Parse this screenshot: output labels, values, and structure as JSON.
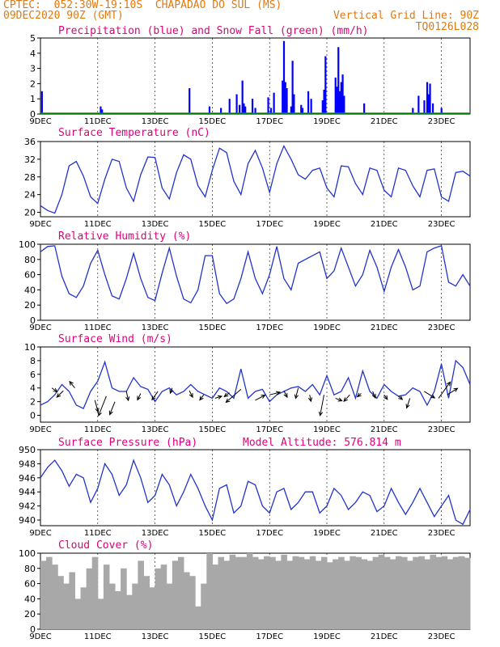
{
  "header": {
    "left_line1": "CPTEC:  052:30W-19:10S  CHAPADAO DO SUL (MS)",
    "left_line2": "09DEC2020 90Z (GMT)",
    "right_line2": "Vertical Grid Line: 90Z",
    "right_line3": "TQ0126L028"
  },
  "colors": {
    "header": "#e07a10",
    "panel_title": "#e0007a",
    "precip": "#0000ff",
    "snow": "#00a000",
    "line": "#2233cc",
    "arrow": "#000000",
    "cloud": "#a8a8a8",
    "grid": "#000000"
  },
  "x_axis": {
    "tick_labels": [
      "9DEC",
      "11DEC",
      "13DEC",
      "15DEC",
      "17DEC",
      "19DEC",
      "21DEC",
      "23DEC"
    ],
    "tick_days": [
      0,
      2,
      4,
      6,
      8,
      10,
      12,
      14
    ],
    "day_span": [
      0,
      15
    ],
    "unit": "days since 09DEC2020"
  },
  "chart_data": [
    {
      "type": "bar",
      "title": "Precipitation (blue) and Snow Fall (green) (mm/h)",
      "ylim": [
        0,
        5
      ],
      "yticks": [
        0,
        1,
        2,
        3,
        4,
        5
      ],
      "series": [
        {
          "name": "Precipitation",
          "x": [
            0.05,
            2.1,
            2.15,
            5.2,
            5.9,
            6.3,
            6.6,
            6.85,
            6.95,
            7.05,
            7.1,
            7.15,
            7.4,
            7.5,
            7.95,
            8.05,
            8.15,
            8.45,
            8.5,
            8.55,
            8.6,
            8.75,
            8.8,
            8.85,
            9.1,
            9.15,
            9.35,
            9.45,
            9.85,
            9.9,
            9.95,
            10.3,
            10.35,
            10.4,
            10.45,
            10.5,
            10.55,
            10.6,
            11.3,
            13.0,
            13.2,
            13.4,
            13.5,
            13.55,
            13.6,
            13.7,
            14.0
          ],
          "values": [
            1.5,
            0.5,
            0.3,
            1.7,
            0.5,
            0.4,
            1.0,
            1.3,
            0.6,
            2.2,
            0.7,
            0.5,
            1.0,
            0.4,
            1.1,
            0.4,
            1.4,
            2.2,
            4.8,
            2.1,
            1.7,
            0.5,
            3.5,
            1.3,
            0.6,
            0.4,
            1.5,
            1.0,
            0.9,
            1.6,
            3.8,
            2.4,
            1.8,
            4.4,
            1.5,
            2.1,
            2.6,
            1.2,
            0.7,
            0.4,
            1.2,
            0.9,
            2.1,
            1.3,
            2.0,
            0.7,
            0.4
          ]
        },
        {
          "name": "Snow Fall",
          "x": [
            0,
            15
          ],
          "values": [
            0,
            0
          ]
        }
      ]
    },
    {
      "type": "line",
      "title": "Surface Temperature (nC)",
      "ylim": [
        19,
        36
      ],
      "yticks": [
        20,
        24,
        28,
        32,
        36
      ],
      "x": [
        0,
        0.25,
        0.5,
        0.75,
        1.0,
        1.25,
        1.5,
        1.75,
        2.0,
        2.25,
        2.5,
        2.75,
        3.0,
        3.25,
        3.5,
        3.75,
        4.0,
        4.25,
        4.5,
        4.75,
        5.0,
        5.25,
        5.5,
        5.75,
        6.0,
        6.25,
        6.5,
        6.75,
        7.0,
        7.25,
        7.5,
        7.75,
        8.0,
        8.25,
        8.5,
        8.75,
        9.0,
        9.25,
        9.5,
        9.75,
        10.0,
        10.25,
        10.5,
        10.75,
        11.0,
        11.25,
        11.5,
        11.75,
        12.0,
        12.25,
        12.5,
        12.75,
        13.0,
        13.25,
        13.5,
        13.75,
        14.0,
        14.25,
        14.5,
        14.75,
        15.0
      ],
      "values": [
        21.5,
        20.4,
        19.8,
        24.0,
        30.5,
        31.5,
        28.2,
        23.5,
        22.0,
        27.5,
        32.0,
        31.5,
        25.5,
        22.5,
        28.5,
        32.5,
        32.4,
        25.5,
        23.0,
        29.0,
        33.0,
        32.0,
        26.0,
        23.5,
        29.5,
        34.5,
        33.5,
        27.0,
        24.0,
        31.0,
        34.0,
        30.0,
        24.5,
        31.0,
        35.0,
        32.0,
        28.5,
        27.5,
        29.5,
        30.0,
        25.5,
        23.5,
        30.5,
        30.3,
        26.5,
        24.0,
        30.0,
        29.5,
        25.0,
        23.5,
        30.0,
        29.5,
        26.0,
        23.5,
        29.5,
        29.8,
        23.5,
        22.5,
        29.0,
        29.3,
        28.2
      ]
    },
    {
      "type": "line",
      "title": "Relative Humidity (%)",
      "ylim": [
        0,
        100
      ],
      "yticks": [
        0,
        20,
        40,
        60,
        80,
        100
      ],
      "x": [
        0,
        0.25,
        0.5,
        0.75,
        1.0,
        1.25,
        1.5,
        1.75,
        2.0,
        2.25,
        2.5,
        2.75,
        3.0,
        3.25,
        3.5,
        3.75,
        4.0,
        4.25,
        4.5,
        4.75,
        5.0,
        5.25,
        5.5,
        5.75,
        6.0,
        6.25,
        6.5,
        6.75,
        7.0,
        7.25,
        7.5,
        7.75,
        8.0,
        8.25,
        8.5,
        8.75,
        9.0,
        9.25,
        9.5,
        9.75,
        10.0,
        10.25,
        10.5,
        10.75,
        11.0,
        11.25,
        11.5,
        11.75,
        12.0,
        12.25,
        12.5,
        12.75,
        13.0,
        13.25,
        13.5,
        13.75,
        14.0,
        14.25,
        14.5,
        14.75,
        15.0
      ],
      "values": [
        90,
        97,
        98,
        58,
        35,
        30,
        45,
        75,
        92,
        60,
        32,
        28,
        55,
        88,
        55,
        30,
        26,
        62,
        95,
        58,
        28,
        23,
        40,
        85,
        85,
        35,
        22,
        28,
        55,
        90,
        55,
        35,
        60,
        97,
        55,
        40,
        75,
        80,
        85,
        90,
        55,
        65,
        95,
        70,
        45,
        60,
        92,
        70,
        38,
        70,
        93,
        70,
        40,
        45,
        90,
        95,
        98,
        50,
        45,
        60,
        45
      ]
    },
    {
      "type": "line",
      "title": "Surface Wind (m/s)",
      "ylim": [
        -1,
        10
      ],
      "yticks": [
        0,
        2,
        4,
        6,
        8,
        10
      ],
      "x": [
        0,
        0.25,
        0.5,
        0.75,
        1.0,
        1.25,
        1.5,
        1.75,
        2.0,
        2.25,
        2.5,
        2.75,
        3.0,
        3.25,
        3.5,
        3.75,
        4.0,
        4.25,
        4.5,
        4.75,
        5.0,
        5.25,
        5.5,
        5.75,
        6.0,
        6.25,
        6.5,
        6.75,
        7.0,
        7.25,
        7.5,
        7.75,
        8.0,
        8.25,
        8.5,
        8.75,
        9.0,
        9.25,
        9.5,
        9.75,
        10.0,
        10.25,
        10.5,
        10.75,
        11.0,
        11.25,
        11.5,
        11.75,
        12.0,
        12.25,
        12.5,
        12.75,
        13.0,
        13.25,
        13.5,
        13.75,
        14.0,
        14.25,
        14.5,
        14.75,
        15.0
      ],
      "values": [
        1.5,
        2.0,
        3.0,
        4.5,
        3.5,
        1.5,
        1.0,
        3.5,
        5.0,
        7.8,
        4.0,
        3.5,
        3.5,
        5.5,
        4.2,
        3.8,
        2.0,
        3.5,
        4.0,
        3.0,
        3.5,
        4.5,
        3.5,
        3.0,
        2.5,
        4.0,
        3.5,
        2.5,
        6.8,
        2.5,
        3.5,
        3.8,
        2.0,
        3.0,
        3.5,
        4.0,
        4.2,
        3.5,
        4.5,
        3.0,
        5.8,
        3.0,
        3.5,
        5.5,
        2.5,
        6.5,
        3.5,
        2.5,
        4.5,
        3.5,
        2.8,
        3.0,
        4.0,
        3.5,
        1.5,
        3.5,
        7.5,
        2.5,
        8.0,
        7.0,
        4.5
      ],
      "arrows": {
        "x": [
          0.4,
          0.8,
          1.2,
          1.9,
          2.3,
          2.6,
          3.0,
          3.5,
          4.1,
          4.6,
          5.2,
          5.7,
          6.1,
          6.6,
          7.0,
          7.5,
          8.0,
          8.5,
          9.0,
          9.4,
          9.9,
          10.3,
          10.8,
          11.2,
          11.6,
          12.0,
          12.5,
          12.9,
          13.4,
          13.9,
          14.2
        ],
        "y": [
          4.0,
          3.6,
          4.0,
          2.2,
          2.8,
          2.0,
          3.5,
          3.2,
          3.5,
          4.0,
          3.6,
          3.0,
          2.5,
          3.3,
          3.8,
          2.2,
          3.0,
          3.6,
          4.0,
          3.0,
          3.0,
          2.5,
          3.0,
          3.2,
          3.5,
          3.0,
          2.8,
          2.5,
          3.5,
          2.5,
          3.0
        ],
        "u": [
          0.8,
          -1.0,
          -0.8,
          0.5,
          -1.2,
          -0.8,
          0.3,
          -0.5,
          -0.9,
          -0.3,
          0.5,
          -0.6,
          1.0,
          -0.8,
          -2.3,
          1.5,
          1.6,
          0.5,
          -0.4,
          0.2,
          -0.6,
          1.0,
          -0.9,
          -0.6,
          0.4,
          0.5,
          0.6,
          -0.5,
          1.6,
          1.8,
          1.6
        ],
        "v": [
          -0.6,
          -1.0,
          1.0,
          -1.8,
          -3.0,
          -2.0,
          -1.4,
          -1.0,
          -1.3,
          -0.8,
          -1.0,
          -0.8,
          0.3,
          -0.6,
          -2.0,
          0.8,
          0.4,
          -1.0,
          -1.6,
          -1.0,
          -3.2,
          -0.4,
          -1.0,
          -0.5,
          -1.0,
          -0.7,
          -0.5,
          -1.5,
          -1.0,
          2.5,
          1.0
        ]
      }
    },
    {
      "type": "line",
      "title": "Surface Pressure (hPa)",
      "annotation": "Model Altitude: 576.814 m",
      "ylim": [
        939.2,
        950
      ],
      "yticks": [
        940,
        942,
        944,
        946,
        948,
        950
      ],
      "x": [
        0,
        0.25,
        0.5,
        0.75,
        1.0,
        1.25,
        1.5,
        1.75,
        2.0,
        2.25,
        2.5,
        2.75,
        3.0,
        3.25,
        3.5,
        3.75,
        4.0,
        4.25,
        4.5,
        4.75,
        5.0,
        5.25,
        5.5,
        5.75,
        6.0,
        6.25,
        6.5,
        6.75,
        7.0,
        7.25,
        7.5,
        7.75,
        8.0,
        8.25,
        8.5,
        8.75,
        9.0,
        9.25,
        9.5,
        9.75,
        10.0,
        10.25,
        10.5,
        10.75,
        11.0,
        11.25,
        11.5,
        11.75,
        12.0,
        12.25,
        12.5,
        12.75,
        13.0,
        13.25,
        13.5,
        13.75,
        14.0,
        14.25,
        14.5,
        14.75,
        15.0
      ],
      "values": [
        946.0,
        947.5,
        948.5,
        947.0,
        944.8,
        946.5,
        946.0,
        942.5,
        944.5,
        948.0,
        946.5,
        943.5,
        945.0,
        948.5,
        946.0,
        942.5,
        943.5,
        946.5,
        945.0,
        942.0,
        944.0,
        946.5,
        944.5,
        942.0,
        940.0,
        944.5,
        945.0,
        941.0,
        942.0,
        945.5,
        945.0,
        942.0,
        941.0,
        944.0,
        944.5,
        941.5,
        942.5,
        944.0,
        944.0,
        941.0,
        942.0,
        944.5,
        943.5,
        941.5,
        942.5,
        944.0,
        943.5,
        941.2,
        942.0,
        944.5,
        942.5,
        940.8,
        942.5,
        944.5,
        942.5,
        940.5,
        942.0,
        943.5,
        940.0,
        939.4,
        941.5
      ]
    },
    {
      "type": "bar",
      "title": "Cloud Cover (%)",
      "ylim": [
        0,
        100
      ],
      "yticks": [
        0,
        20,
        40,
        60,
        80,
        100
      ],
      "x": [
        0,
        0.2,
        0.4,
        0.6,
        0.8,
        1.0,
        1.2,
        1.4,
        1.6,
        1.8,
        2.0,
        2.2,
        2.4,
        2.6,
        2.8,
        3.0,
        3.2,
        3.4,
        3.6,
        3.8,
        4.0,
        4.2,
        4.4,
        4.6,
        4.8,
        5.0,
        5.2,
        5.4,
        5.6,
        5.8,
        6.0,
        6.2,
        6.4,
        6.6,
        6.8,
        7.0,
        7.2,
        7.4,
        7.6,
        7.8,
        8.0,
        8.2,
        8.4,
        8.6,
        8.8,
        9.0,
        9.2,
        9.4,
        9.6,
        9.8,
        10.0,
        10.2,
        10.4,
        10.6,
        10.8,
        11.0,
        11.2,
        11.4,
        11.6,
        11.8,
        12.0,
        12.2,
        12.4,
        12.6,
        12.8,
        13.0,
        13.2,
        13.4,
        13.6,
        13.8,
        14.0,
        14.2,
        14.4,
        14.6,
        14.8
      ],
      "values": [
        90,
        95,
        85,
        70,
        60,
        75,
        40,
        55,
        80,
        95,
        40,
        85,
        60,
        50,
        80,
        45,
        60,
        90,
        70,
        55,
        80,
        85,
        60,
        90,
        95,
        75,
        70,
        30,
        60,
        100,
        85,
        95,
        90,
        98,
        95,
        95,
        100,
        95,
        92,
        96,
        95,
        90,
        98,
        90,
        96,
        95,
        92,
        96,
        90,
        95,
        88,
        92,
        95,
        90,
        96,
        95,
        92,
        90,
        95,
        98,
        95,
        92,
        96,
        95,
        90,
        95,
        96,
        92,
        98,
        95,
        96,
        92,
        95,
        96,
        94
      ]
    }
  ]
}
